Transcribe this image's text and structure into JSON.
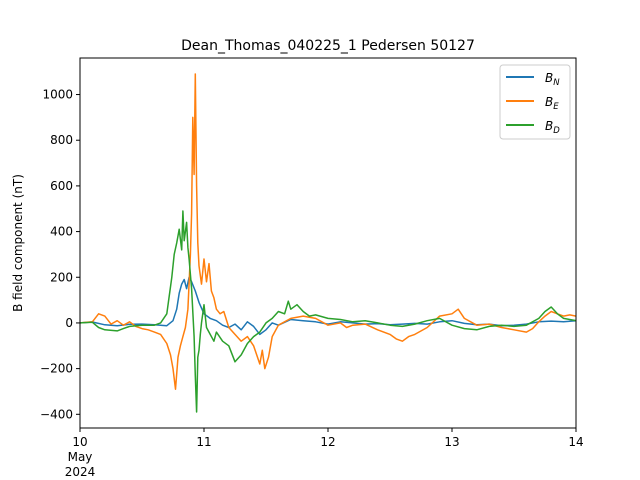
{
  "chart_data": {
    "type": "line",
    "title": "Dean_Thomas_040225_1 Pedersen 50127",
    "xlabel": "",
    "ylabel": "B field component (nT)",
    "xlim": [
      10,
      14
    ],
    "ylim": [
      -460,
      1160
    ],
    "x_ticks": [
      {
        "value": 10,
        "label": "10",
        "sublabel_1": "May",
        "sublabel_2": "2024"
      },
      {
        "value": 11,
        "label": "11"
      },
      {
        "value": 12,
        "label": "12"
      },
      {
        "value": 13,
        "label": "13"
      },
      {
        "value": 14,
        "label": "14"
      }
    ],
    "y_ticks": [
      {
        "value": -400,
        "label": "−400"
      },
      {
        "value": -200,
        "label": "−200"
      },
      {
        "value": 0,
        "label": "0"
      },
      {
        "value": 200,
        "label": "200"
      },
      {
        "value": 400,
        "label": "400"
      },
      {
        "value": 600,
        "label": "600"
      },
      {
        "value": 800,
        "label": "800"
      },
      {
        "value": 1000,
        "label": "1000"
      }
    ],
    "grid": false,
    "legend_position": "top-right",
    "series": [
      {
        "name": "B_N",
        "legend_main": "B",
        "legend_sub": "N",
        "color": "#1f77b4",
        "points": [
          [
            10.0,
            0
          ],
          [
            10.1,
            4
          ],
          [
            10.2,
            -8
          ],
          [
            10.3,
            -12
          ],
          [
            10.4,
            -6
          ],
          [
            10.5,
            -5
          ],
          [
            10.6,
            -8
          ],
          [
            10.7,
            -12
          ],
          [
            10.75,
            10
          ],
          [
            10.78,
            60
          ],
          [
            10.8,
            130
          ],
          [
            10.82,
            170
          ],
          [
            10.84,
            190
          ],
          [
            10.86,
            150
          ],
          [
            10.88,
            200
          ],
          [
            10.9,
            180
          ],
          [
            10.93,
            140
          ],
          [
            10.96,
            90
          ],
          [
            11.0,
            40
          ],
          [
            11.05,
            20
          ],
          [
            11.1,
            10
          ],
          [
            11.15,
            -10
          ],
          [
            11.2,
            -20
          ],
          [
            11.25,
            -5
          ],
          [
            11.3,
            -30
          ],
          [
            11.35,
            5
          ],
          [
            11.4,
            -15
          ],
          [
            11.45,
            -50
          ],
          [
            11.5,
            -30
          ],
          [
            11.55,
            0
          ],
          [
            11.6,
            -10
          ],
          [
            11.7,
            15
          ],
          [
            11.8,
            10
          ],
          [
            11.9,
            5
          ],
          [
            12.0,
            -5
          ],
          [
            12.1,
            5
          ],
          [
            12.2,
            0
          ],
          [
            12.3,
            -5
          ],
          [
            12.4,
            -3
          ],
          [
            12.5,
            -8
          ],
          [
            12.6,
            -5
          ],
          [
            12.7,
            -2
          ],
          [
            12.8,
            -5
          ],
          [
            12.9,
            5
          ],
          [
            13.0,
            10
          ],
          [
            13.1,
            -2
          ],
          [
            13.2,
            -8
          ],
          [
            13.3,
            -5
          ],
          [
            13.4,
            -12
          ],
          [
            13.5,
            -10
          ],
          [
            13.6,
            -5
          ],
          [
            13.7,
            5
          ],
          [
            13.8,
            8
          ],
          [
            13.9,
            5
          ],
          [
            14.0,
            10
          ]
        ]
      },
      {
        "name": "B_E",
        "legend_main": "B",
        "legend_sub": "E",
        "color": "#ff7f0e",
        "points": [
          [
            10.0,
            0
          ],
          [
            10.1,
            5
          ],
          [
            10.15,
            40
          ],
          [
            10.2,
            30
          ],
          [
            10.25,
            -5
          ],
          [
            10.3,
            10
          ],
          [
            10.35,
            -10
          ],
          [
            10.4,
            5
          ],
          [
            10.45,
            -15
          ],
          [
            10.5,
            -25
          ],
          [
            10.55,
            -30
          ],
          [
            10.6,
            -40
          ],
          [
            10.65,
            -50
          ],
          [
            10.7,
            -90
          ],
          [
            10.73,
            -140
          ],
          [
            10.75,
            -200
          ],
          [
            10.77,
            -290
          ],
          [
            10.79,
            -150
          ],
          [
            10.81,
            -100
          ],
          [
            10.83,
            -60
          ],
          [
            10.85,
            -20
          ],
          [
            10.87,
            60
          ],
          [
            10.89,
            300
          ],
          [
            10.9,
            480
          ],
          [
            10.91,
            900
          ],
          [
            10.92,
            650
          ],
          [
            10.93,
            1090
          ],
          [
            10.94,
            600
          ],
          [
            10.95,
            350
          ],
          [
            10.96,
            250
          ],
          [
            10.98,
            170
          ],
          [
            11.0,
            280
          ],
          [
            11.02,
            180
          ],
          [
            11.04,
            260
          ],
          [
            11.06,
            140
          ],
          [
            11.08,
            110
          ],
          [
            11.1,
            60
          ],
          [
            11.13,
            40
          ],
          [
            11.16,
            50
          ],
          [
            11.2,
            -20
          ],
          [
            11.25,
            -50
          ],
          [
            11.3,
            -80
          ],
          [
            11.35,
            -60
          ],
          [
            11.4,
            -100
          ],
          [
            11.45,
            -180
          ],
          [
            11.47,
            -120
          ],
          [
            11.49,
            -200
          ],
          [
            11.52,
            -150
          ],
          [
            11.55,
            -60
          ],
          [
            11.6,
            -10
          ],
          [
            11.7,
            20
          ],
          [
            11.8,
            30
          ],
          [
            11.9,
            20
          ],
          [
            12.0,
            -10
          ],
          [
            12.1,
            0
          ],
          [
            12.15,
            -20
          ],
          [
            12.2,
            -10
          ],
          [
            12.3,
            -5
          ],
          [
            12.4,
            -30
          ],
          [
            12.5,
            -50
          ],
          [
            12.55,
            -70
          ],
          [
            12.6,
            -80
          ],
          [
            12.65,
            -60
          ],
          [
            12.7,
            -50
          ],
          [
            12.8,
            -20
          ],
          [
            12.9,
            30
          ],
          [
            13.0,
            40
          ],
          [
            13.05,
            60
          ],
          [
            13.1,
            20
          ],
          [
            13.2,
            -10
          ],
          [
            13.3,
            -5
          ],
          [
            13.4,
            -20
          ],
          [
            13.5,
            -30
          ],
          [
            13.6,
            -40
          ],
          [
            13.65,
            -25
          ],
          [
            13.7,
            5
          ],
          [
            13.75,
            30
          ],
          [
            13.8,
            50
          ],
          [
            13.85,
            40
          ],
          [
            13.9,
            30
          ],
          [
            13.95,
            35
          ],
          [
            14.0,
            30
          ]
        ]
      },
      {
        "name": "B_D",
        "legend_main": "B",
        "legend_sub": "D",
        "color": "#2ca02c",
        "points": [
          [
            10.0,
            0
          ],
          [
            10.1,
            3
          ],
          [
            10.15,
            -20
          ],
          [
            10.2,
            -30
          ],
          [
            10.3,
            -35
          ],
          [
            10.35,
            -25
          ],
          [
            10.4,
            -15
          ],
          [
            10.5,
            -10
          ],
          [
            10.6,
            -10
          ],
          [
            10.65,
            0
          ],
          [
            10.7,
            40
          ],
          [
            10.72,
            120
          ],
          [
            10.74,
            200
          ],
          [
            10.76,
            300
          ],
          [
            10.78,
            350
          ],
          [
            10.8,
            410
          ],
          [
            10.82,
            320
          ],
          [
            10.83,
            490
          ],
          [
            10.84,
            360
          ],
          [
            10.86,
            440
          ],
          [
            10.87,
            330
          ],
          [
            10.88,
            280
          ],
          [
            10.9,
            150
          ],
          [
            10.92,
            -60
          ],
          [
            10.93,
            -230
          ],
          [
            10.94,
            -390
          ],
          [
            10.95,
            -150
          ],
          [
            10.96,
            -120
          ],
          [
            10.97,
            -50
          ],
          [
            10.98,
            0
          ],
          [
            11.0,
            80
          ],
          [
            11.02,
            -20
          ],
          [
            11.05,
            -50
          ],
          [
            11.08,
            -80
          ],
          [
            11.1,
            -40
          ],
          [
            11.15,
            -80
          ],
          [
            11.2,
            -100
          ],
          [
            11.25,
            -170
          ],
          [
            11.3,
            -140
          ],
          [
            11.35,
            -90
          ],
          [
            11.4,
            -60
          ],
          [
            11.45,
            -40
          ],
          [
            11.5,
            0
          ],
          [
            11.55,
            20
          ],
          [
            11.6,
            50
          ],
          [
            11.65,
            40
          ],
          [
            11.68,
            95
          ],
          [
            11.7,
            60
          ],
          [
            11.75,
            80
          ],
          [
            11.8,
            50
          ],
          [
            11.85,
            30
          ],
          [
            11.9,
            35
          ],
          [
            12.0,
            20
          ],
          [
            12.1,
            15
          ],
          [
            12.2,
            5
          ],
          [
            12.3,
            10
          ],
          [
            12.4,
            0
          ],
          [
            12.5,
            -10
          ],
          [
            12.6,
            -15
          ],
          [
            12.7,
            -5
          ],
          [
            12.8,
            10
          ],
          [
            12.9,
            20
          ],
          [
            13.0,
            -10
          ],
          [
            13.1,
            -25
          ],
          [
            13.2,
            -30
          ],
          [
            13.3,
            -15
          ],
          [
            13.4,
            -10
          ],
          [
            13.5,
            -15
          ],
          [
            13.6,
            -10
          ],
          [
            13.7,
            20
          ],
          [
            13.75,
            50
          ],
          [
            13.8,
            70
          ],
          [
            13.85,
            40
          ],
          [
            13.9,
            20
          ],
          [
            14.0,
            10
          ]
        ]
      }
    ]
  }
}
